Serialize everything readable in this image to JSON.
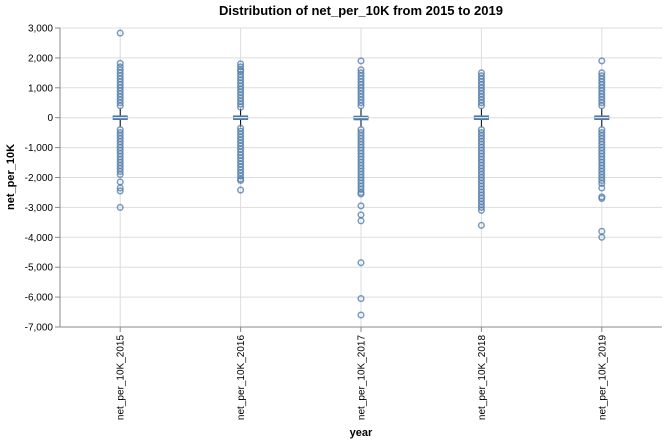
{
  "chart_data": {
    "type": "boxplot",
    "title": "Distribution of net_per_10K from 2015 to 2019",
    "xlabel": "year",
    "ylabel": "net_per_10K",
    "ylim": [
      -7000,
      3000
    ],
    "y_ticks": [
      3000,
      2000,
      1000,
      0,
      -1000,
      -2000,
      -3000,
      -4000,
      -5000,
      -6000,
      -7000
    ],
    "y_tick_labels": [
      "3,000",
      "2,000",
      "1,000",
      "0",
      "-1,000",
      "-2,000",
      "-3,000",
      "-4,000",
      "-5,000",
      "-6,000",
      "-7,000"
    ],
    "categories": [
      "net_per_10K_2015",
      "net_per_10K_2016",
      "net_per_10K_2017",
      "net_per_10K_2018",
      "net_per_10K_2019"
    ],
    "grid": true,
    "color": "#4c78a8",
    "series": [
      {
        "category": "net_per_10K_2015",
        "q1": -60,
        "median": 0,
        "q3": 60,
        "whisker_low": -300,
        "whisker_high": 300,
        "outliers": [
          2830,
          1820,
          1700,
          1600,
          1500,
          1400,
          1300,
          1200,
          1100,
          1000,
          900,
          800,
          700,
          600,
          500,
          400,
          -400,
          -500,
          -600,
          -700,
          -800,
          -900,
          -1000,
          -1100,
          -1200,
          -1300,
          -1400,
          -1500,
          -1600,
          -1700,
          -1800,
          -1900,
          -2150,
          -2350,
          -2450,
          -3000
        ]
      },
      {
        "category": "net_per_10K_2016",
        "q1": -60,
        "median": 0,
        "q3": 60,
        "whisker_low": -300,
        "whisker_high": 300,
        "outliers": [
          1800,
          1700,
          1600,
          1550,
          1450,
          1350,
          1250,
          1150,
          1050,
          950,
          850,
          750,
          650,
          550,
          450,
          350,
          -350,
          -450,
          -550,
          -650,
          -750,
          -850,
          -950,
          -1050,
          -1150,
          -1250,
          -1350,
          -1450,
          -1550,
          -1650,
          -1750,
          -1850,
          -1950,
          -2050,
          -2100,
          -2420
        ]
      },
      {
        "category": "net_per_10K_2017",
        "q1": -70,
        "median": 0,
        "q3": 50,
        "whisker_low": -300,
        "whisker_high": 300,
        "outliers": [
          1900,
          1600,
          1500,
          1400,
          1300,
          1200,
          1100,
          1000,
          900,
          800,
          700,
          600,
          500,
          400,
          -400,
          -500,
          -600,
          -700,
          -800,
          -900,
          -1000,
          -1100,
          -1200,
          -1300,
          -1400,
          -1500,
          -1600,
          -1700,
          -1800,
          -1900,
          -2000,
          -2100,
          -2200,
          -2300,
          -2400,
          -2500,
          -2550,
          -2950,
          -3250,
          -3450,
          -4850,
          -6050,
          -6600
        ]
      },
      {
        "category": "net_per_10K_2018",
        "q1": -60,
        "median": 0,
        "q3": 60,
        "whisker_low": -300,
        "whisker_high": 300,
        "outliers": [
          1500,
          1400,
          1300,
          1200,
          1100,
          1000,
          900,
          800,
          700,
          600,
          500,
          400,
          -400,
          -500,
          -600,
          -700,
          -800,
          -900,
          -1000,
          -1100,
          -1200,
          -1300,
          -1400,
          -1500,
          -1600,
          -1700,
          -1800,
          -1900,
          -2000,
          -2100,
          -2200,
          -2300,
          -2400,
          -2500,
          -2600,
          -2700,
          -2800,
          -2900,
          -3000,
          -3100,
          -3600
        ]
      },
      {
        "category": "net_per_10K_2019",
        "q1": -60,
        "median": 0,
        "q3": 60,
        "whisker_low": -300,
        "whisker_high": 300,
        "outliers": [
          1900,
          1500,
          1400,
          1300,
          1200,
          1100,
          1000,
          900,
          800,
          700,
          600,
          500,
          400,
          -400,
          -500,
          -600,
          -700,
          -800,
          -900,
          -1000,
          -1100,
          -1200,
          -1300,
          -1400,
          -1500,
          -1600,
          -1700,
          -1800,
          -1900,
          -2000,
          -2100,
          -2200,
          -2350,
          -2650,
          -2700,
          -3800,
          -4000
        ]
      }
    ]
  }
}
